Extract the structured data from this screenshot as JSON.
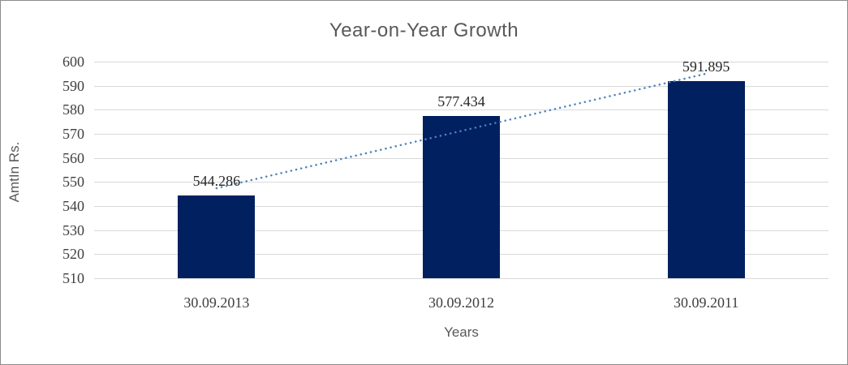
{
  "chart_data": {
    "type": "bar",
    "title": "Year-on-Year Growth",
    "xlabel": "Years",
    "ylabel": "AmtIn Rs.",
    "categories": [
      "30.09.2013",
      "30.09.2012",
      "30.09.2011"
    ],
    "values": [
      544.286,
      577.434,
      591.895
    ],
    "data_labels": [
      "544.286",
      "577.434",
      "591.895"
    ],
    "ylim": [
      510,
      600
    ],
    "ytick_step": 10,
    "ytick_labels": [
      "600",
      "590",
      "580",
      "570",
      "560",
      "550",
      "540",
      "530",
      "520",
      "510"
    ],
    "grid": true,
    "legend_position": "none",
    "bar_color": "#002060",
    "gridline_color": "#d9d9d9",
    "trendline": {
      "type": "linear",
      "style": "dotted",
      "color": "#4e81bd"
    },
    "title_color": "#595959",
    "axis_label_color": "#595959",
    "tick_label_color": "#404040"
  }
}
